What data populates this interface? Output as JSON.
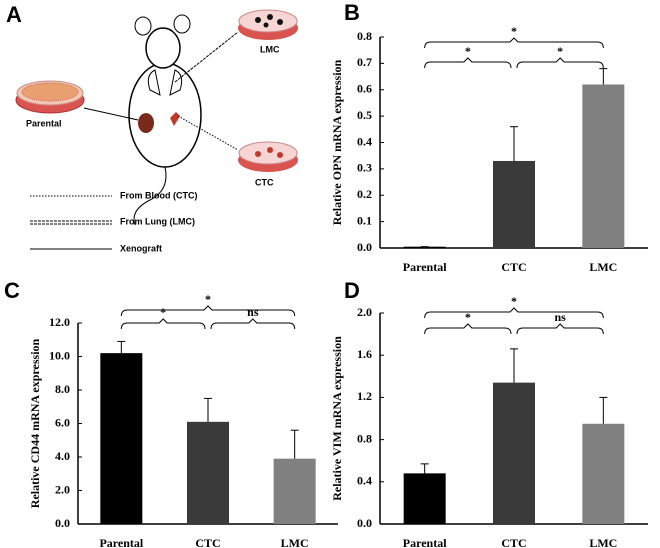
{
  "diagram": {
    "panel": "A",
    "lmc_dish": "LMC",
    "parental_dish": "Parental",
    "ctc_dish": "CTC",
    "legend": [
      "From Blood (CTC)",
      "From Lung  (LMC)",
      "Xenograft"
    ]
  },
  "chart_data": [
    {
      "type": "bar",
      "panel": "B",
      "y_label": "Relative OPN mRNA expression",
      "categories": [
        "Parental",
        "CTC",
        "LMC"
      ],
      "values": [
        0.005,
        0.33,
        0.62
      ],
      "errors": [
        0,
        0.13,
        0.06
      ],
      "colors": [
        "#000000",
        "#3a3a3a",
        "#808080"
      ],
      "ylim": [
        0,
        0.8
      ],
      "yticks": [
        {
          "value": 0,
          "label": "0.0"
        },
        0.1,
        0.2,
        0.3,
        0.4,
        0.5,
        0.6,
        0.7,
        0.8
      ],
      "annotations": [
        "*",
        "*",
        "*"
      ]
    },
    {
      "type": "bar",
      "panel": "C",
      "y_label": "Relative CD44 mRNA expression",
      "categories": [
        "Parental",
        "CTC",
        "LMC"
      ],
      "values": [
        10.2,
        6.1,
        3.9
      ],
      "errors": [
        0.7,
        1.4,
        1.7
      ],
      "colors": [
        "#000000",
        "#3a3a3a",
        "#808080"
      ],
      "ylim": [
        0,
        12
      ],
      "yticks": [
        {
          "value": 0,
          "label": "0.0"
        },
        {
          "value": 2,
          "label": "2.0"
        },
        {
          "value": 4,
          "label": "4.0"
        },
        {
          "value": 6,
          "label": "6.0"
        },
        {
          "value": 8,
          "label": "8.0"
        },
        {
          "value": 10,
          "label": "10.0"
        },
        {
          "value": 12,
          "label": "12.0"
        }
      ],
      "annotations": [
        "*",
        "ns",
        "*"
      ]
    },
    {
      "type": "bar",
      "panel": "D",
      "y_label": "Relative VIM mRNA expression",
      "categories": [
        "Parental",
        "CTC",
        "LMC"
      ],
      "values": [
        0.48,
        1.34,
        0.95
      ],
      "errors": [
        0.09,
        0.32,
        0.25
      ],
      "colors": [
        "#000000",
        "#3a3a3a",
        "#808080"
      ],
      "ylim": [
        0,
        2
      ],
      "yticks": [
        {
          "value": 0,
          "label": "0.0"
        },
        0.4,
        0.8,
        1.2,
        1.6,
        {
          "value": 2,
          "label": "2.0"
        }
      ],
      "annotations": [
        "*",
        "ns",
        "*"
      ]
    }
  ]
}
